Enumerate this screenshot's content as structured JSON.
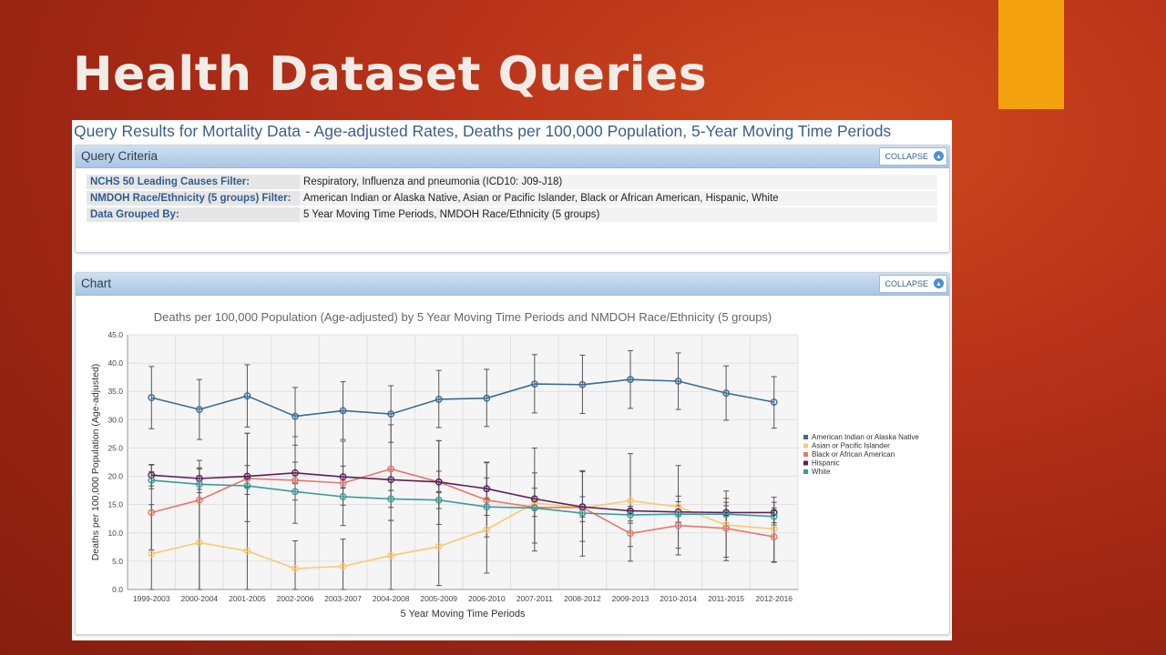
{
  "slide": {
    "title": "Health Dataset Queries"
  },
  "query": {
    "title": "Query Results for Mortality Data - Age-adjusted Rates, Deaths per 100,000 Population, 5-Year Moving Time Periods",
    "criteria_header": "Query Criteria",
    "collapse_label": "COLLAPSE",
    "criteria": [
      {
        "label": "NCHS 50 Leading Causes Filter:",
        "value": "Respiratory, Influenza and pneumonia (ICD10: J09-J18)"
      },
      {
        "label": "NMDOH Race/Ethnicity (5 groups) Filter:",
        "value": "American Indian or Alaska Native, Asian or Pacific Islander, Black or African American, Hispanic, White"
      },
      {
        "label": "Data Grouped By:",
        "value": "5 Year Moving Time Periods, NMDOH Race/Ethnicity (5 groups)"
      }
    ],
    "chart_header": "Chart"
  },
  "chart_data": {
    "type": "line",
    "title": "Deaths per 100,000 Population (Age-adjusted) by 5 Year Moving Time Periods and NMDOH Race/Ethnicity (5 groups)",
    "xlabel": "5 Year Moving Time Periods",
    "ylabel": "Deaths per 100,000 Population (Age-adjusted)",
    "ylim": [
      0,
      45
    ],
    "yticks": [
      "0.0",
      "5.0",
      "10.0",
      "15.0",
      "20.0",
      "25.0",
      "30.0",
      "35.0",
      "40.0",
      "45.0"
    ],
    "grid": true,
    "legend_position": "right",
    "error_bars": true,
    "categories": [
      "1999-2003",
      "2000-2004",
      "2001-2005",
      "2002-2006",
      "2003-2007",
      "2004-2008",
      "2005-2009",
      "2006-2010",
      "2007-2011",
      "2008-2012",
      "2009-2013",
      "2010-2014",
      "2011-2015",
      "2012-2016"
    ],
    "series": [
      {
        "name": "American Indian or Alaska Native",
        "color": "#3b6a93",
        "values": [
          33.9,
          31.8,
          34.2,
          30.6,
          31.6,
          31.0,
          33.6,
          33.8,
          36.3,
          36.2,
          37.1,
          36.8,
          34.7,
          33.1
        ],
        "lower": [
          28.4,
          26.5,
          28.7,
          25.5,
          26.5,
          26.0,
          28.6,
          28.8,
          31.2,
          31.1,
          32.0,
          31.8,
          29.9,
          28.5
        ],
        "upper": [
          39.4,
          37.1,
          39.7,
          35.7,
          36.7,
          36.0,
          38.7,
          38.9,
          41.5,
          41.4,
          42.2,
          41.8,
          39.5,
          37.6
        ]
      },
      {
        "name": "Asian or Pacific Islander",
        "color": "#f8ca72",
        "values": [
          6.3,
          8.3,
          6.8,
          3.7,
          4.1,
          6.0,
          7.6,
          10.6,
          15.3,
          14.4,
          15.7,
          14.6,
          11.4,
          10.7
        ],
        "lower": [
          0.0,
          0.0,
          0.0,
          0.0,
          0.0,
          0.0,
          0.7,
          2.9,
          8.2,
          8.5,
          7.6,
          7.3,
          5.7,
          4.9
        ],
        "upper": [
          15.0,
          21.3,
          27.6,
          8.6,
          8.9,
          12.2,
          26.3,
          22.5,
          25.0,
          21.0,
          24.0,
          21.9,
          17.4,
          16.3
        ]
      },
      {
        "name": "Black or African American",
        "color": "#e8776a",
        "values": [
          13.6,
          15.8,
          19.6,
          19.3,
          18.8,
          21.3,
          19.0,
          15.8,
          14.5,
          14.5,
          9.9,
          11.3,
          10.8,
          9.3
        ],
        "lower": [
          7.0,
          0.0,
          12.0,
          11.7,
          11.3,
          12.2,
          11.5,
          9.3,
          6.8,
          5.9,
          5.0,
          6.1,
          5.1,
          4.8
        ],
        "upper": [
          22.0,
          22.8,
          27.6,
          27.0,
          26.2,
          29.1,
          26.3,
          22.4,
          20.6,
          20.8,
          14.2,
          16.5,
          16.1,
          13.9
        ]
      },
      {
        "name": "Hispanic",
        "color": "#5d1f5b",
        "values": [
          20.2,
          19.6,
          20.0,
          20.6,
          19.9,
          19.4,
          19.0,
          17.8,
          16.0,
          14.6,
          13.9,
          13.7,
          13.6,
          13.6
        ],
        "lower": [
          18.3,
          17.7,
          18.1,
          18.7,
          18.0,
          17.5,
          17.1,
          15.9,
          14.1,
          12.8,
          12.1,
          11.9,
          11.8,
          11.8
        ],
        "upper": [
          22.1,
          21.5,
          21.9,
          22.5,
          21.8,
          21.3,
          20.9,
          19.7,
          17.9,
          16.4,
          15.7,
          15.5,
          15.4,
          15.4
        ]
      },
      {
        "name": "White",
        "color": "#3d9b98",
        "values": [
          19.3,
          18.6,
          18.3,
          17.3,
          16.4,
          16.0,
          15.8,
          14.6,
          14.4,
          13.5,
          13.2,
          13.3,
          13.3,
          12.9
        ],
        "lower": [
          17.8,
          17.1,
          16.8,
          15.8,
          14.9,
          14.5,
          14.3,
          13.1,
          12.9,
          12.0,
          11.7,
          11.8,
          11.8,
          11.4
        ],
        "upper": [
          20.8,
          20.1,
          19.8,
          18.8,
          17.9,
          17.5,
          17.3,
          16.1,
          15.9,
          15.0,
          14.7,
          14.8,
          14.8,
          14.4
        ]
      }
    ]
  }
}
